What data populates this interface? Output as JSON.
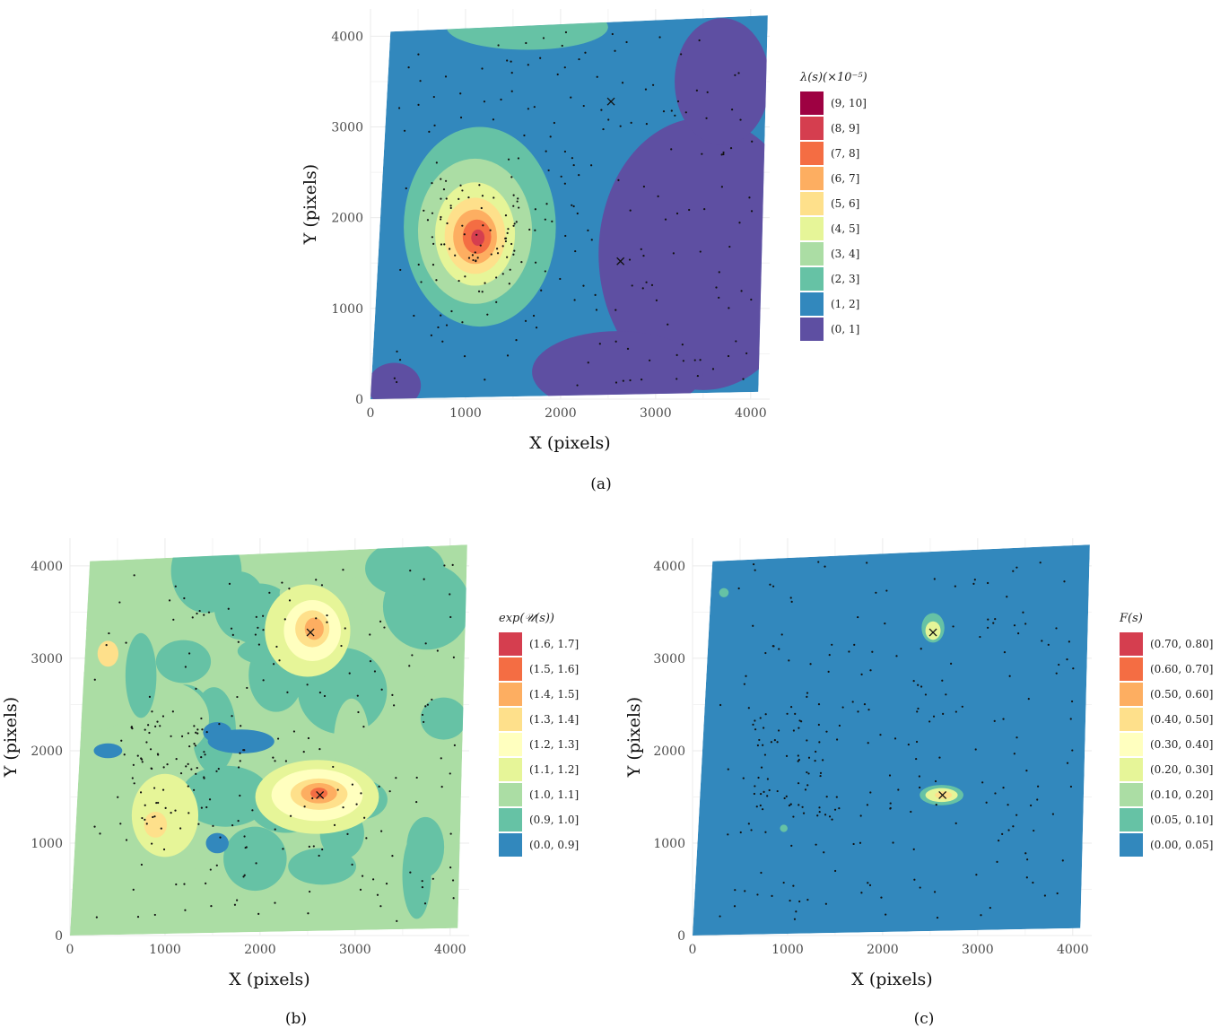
{
  "chart_data": [
    {
      "type": "heatmap",
      "panel": "(a)",
      "xlabel": "X (pixels)",
      "ylabel": "Y (pixels)",
      "xlim": [
        0,
        4200
      ],
      "ylim": [
        0,
        4300
      ],
      "x_ticks": [
        "0",
        "1000",
        "2000",
        "3000",
        "4000"
      ],
      "y_ticks": [
        "0",
        "1000",
        "2000",
        "3000",
        "4000"
      ],
      "legend_title": "λ(s)(×10⁻⁵)",
      "legend": [
        {
          "label": "(9, 10]",
          "color": "#9e0142"
        },
        {
          "label": "(8, 9]",
          "color": "#d53e4f"
        },
        {
          "label": "(7, 8]",
          "color": "#f46d43"
        },
        {
          "label": "(6, 7]",
          "color": "#fdae61"
        },
        {
          "label": "(5, 6]",
          "color": "#fee08b"
        },
        {
          "label": "(4, 5]",
          "color": "#e6f598"
        },
        {
          "label": "(3, 4]",
          "color": "#abdda4"
        },
        {
          "label": "(2, 3]",
          "color": "#66c2a5"
        },
        {
          "label": "(1, 2]",
          "color": "#3288bd"
        },
        {
          "label": "(0, 1]",
          "color": "#5e4fa2"
        }
      ],
      "markers_x": [
        {
          "x": 2530,
          "y": 3280
        },
        {
          "x": 2630,
          "y": 1520
        }
      ],
      "region_corners": [
        [
          0,
          0
        ],
        [
          4080,
          80
        ],
        [
          4180,
          4230
        ],
        [
          210,
          4050
        ]
      ]
    },
    {
      "type": "heatmap",
      "panel": "(b)",
      "xlabel": "X (pixels)",
      "ylabel": "Y (pixels)",
      "xlim": [
        0,
        4200
      ],
      "ylim": [
        0,
        4300
      ],
      "x_ticks": [
        "0",
        "1000",
        "2000",
        "3000",
        "4000"
      ],
      "y_ticks": [
        "0",
        "1000",
        "2000",
        "3000",
        "4000"
      ],
      "legend_title": "exp(𝒰(s))",
      "legend": [
        {
          "label": "(1.6, 1.7]",
          "color": "#d53e4f"
        },
        {
          "label": "(1.5, 1.6]",
          "color": "#f46d43"
        },
        {
          "label": "(1.4, 1.5]",
          "color": "#fdae61"
        },
        {
          "label": "(1.3, 1.4]",
          "color": "#fee08b"
        },
        {
          "label": "(1.2, 1.3]",
          "color": "#ffffbf"
        },
        {
          "label": "(1.1, 1.2]",
          "color": "#e6f598"
        },
        {
          "label": "(1.0, 1.1]",
          "color": "#abdda4"
        },
        {
          "label": "(0.9, 1.0]",
          "color": "#66c2a5"
        },
        {
          "label": "(0.0, 0.9]",
          "color": "#3288bd"
        }
      ],
      "markers_x": [
        {
          "x": 2530,
          "y": 3280
        },
        {
          "x": 2630,
          "y": 1520
        }
      ]
    },
    {
      "type": "heatmap",
      "panel": "(c)",
      "xlabel": "X (pixels)",
      "ylabel": "Y (pixels)",
      "xlim": [
        0,
        4200
      ],
      "ylim": [
        0,
        4300
      ],
      "x_ticks": [
        "0",
        "1000",
        "2000",
        "3000",
        "4000"
      ],
      "y_ticks": [
        "0",
        "1000",
        "2000",
        "3000",
        "4000"
      ],
      "legend_title": "F(s)",
      "legend": [
        {
          "label": "(0.70, 0.80]",
          "color": "#d53e4f"
        },
        {
          "label": "(0.60, 0.70]",
          "color": "#f46d43"
        },
        {
          "label": "(0.50, 0.60]",
          "color": "#fdae61"
        },
        {
          "label": "(0.40, 0.50]",
          "color": "#fee08b"
        },
        {
          "label": "(0.30, 0.40]",
          "color": "#ffffbf"
        },
        {
          "label": "(0.20, 0.30]",
          "color": "#e6f598"
        },
        {
          "label": "(0.10, 0.20]",
          "color": "#abdda4"
        },
        {
          "label": "(0.05, 0.10]",
          "color": "#66c2a5"
        },
        {
          "label": "(0.00, 0.05]",
          "color": "#3288bd"
        }
      ],
      "markers_x": [
        {
          "x": 2530,
          "y": 3280
        },
        {
          "x": 2630,
          "y": 1520
        }
      ]
    }
  ],
  "captions": {
    "a": "(a)",
    "b": "(b)",
    "c": "(c)"
  }
}
